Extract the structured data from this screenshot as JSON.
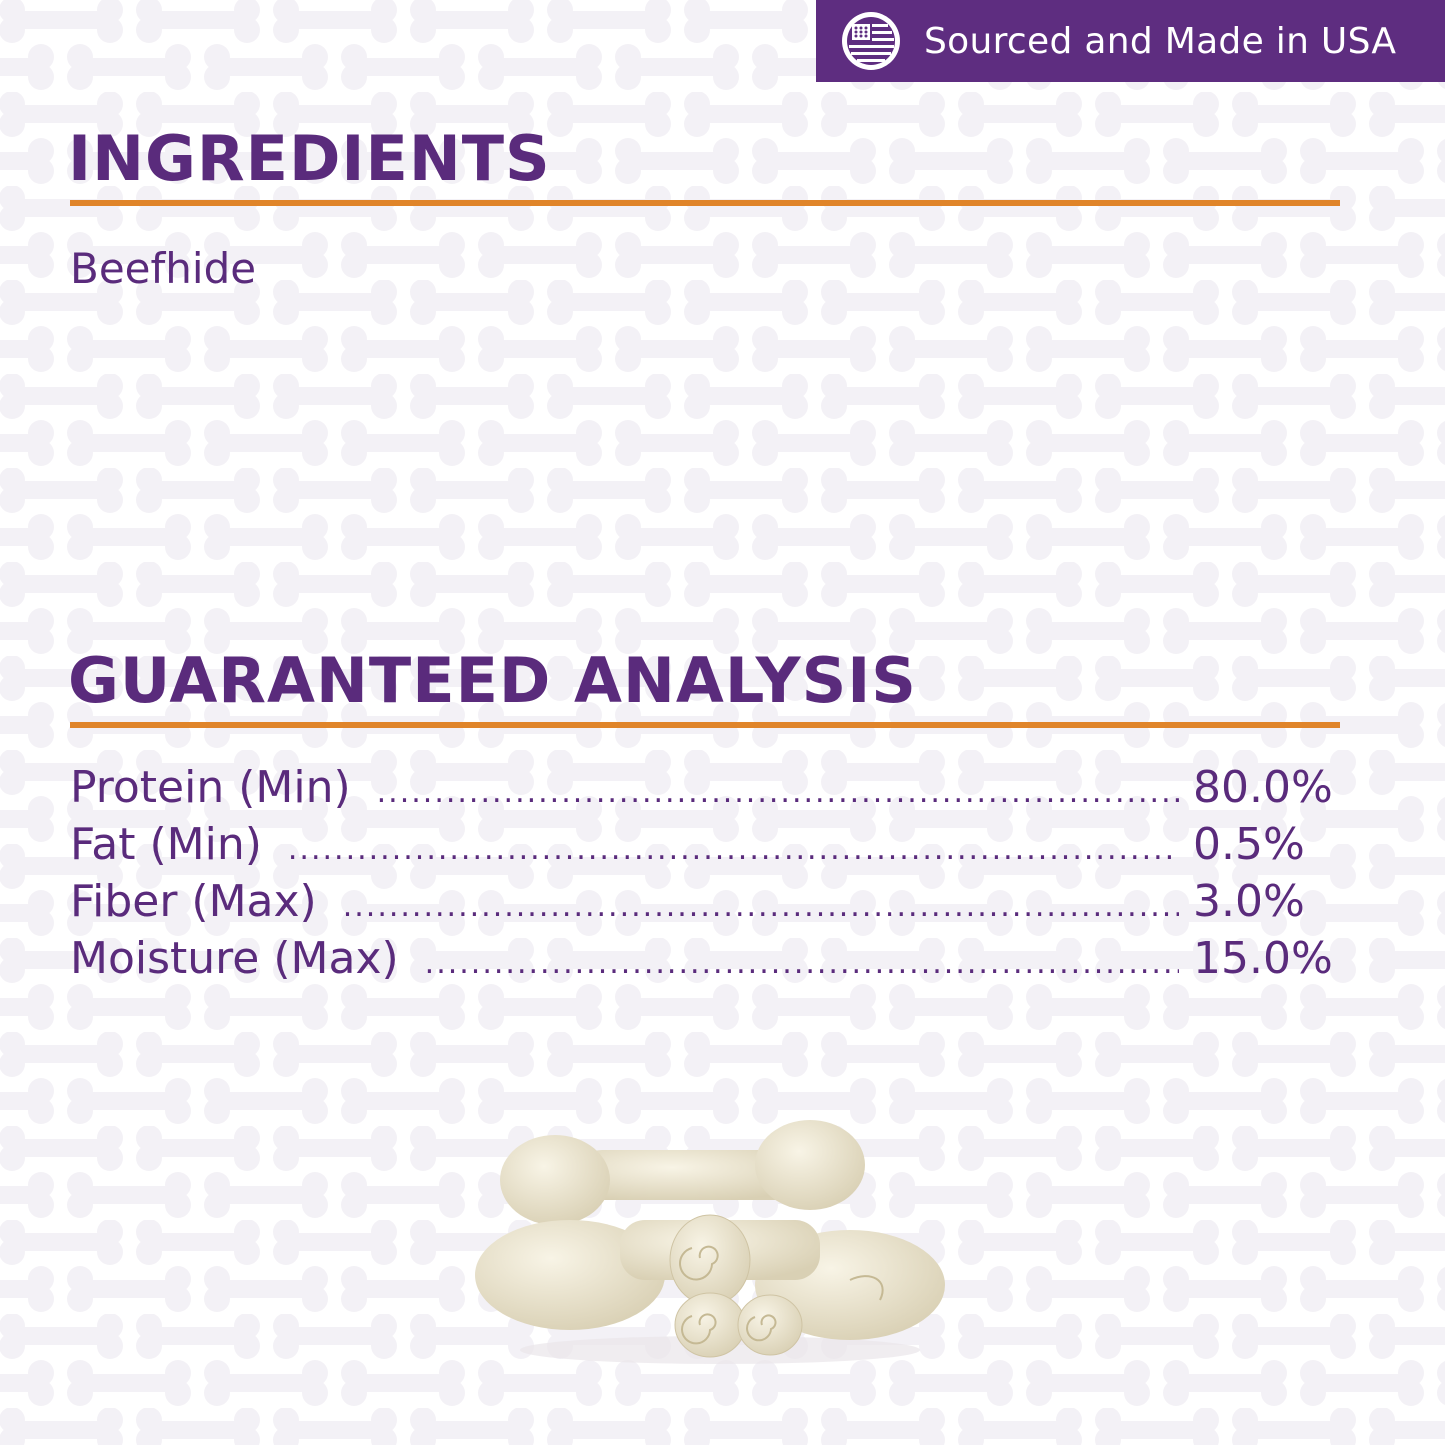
{
  "badge": {
    "icon": "usa-flag-globe-icon",
    "text": "Sourced and Made in USA"
  },
  "ingredients": {
    "title": "INGREDIENTS",
    "text": "Beefhide"
  },
  "analysis": {
    "title": "GUARANTEED ANALYSIS",
    "rows": [
      {
        "label": "Protein (Min)",
        "value": "80.0%"
      },
      {
        "label": "Fat (Min)",
        "value": "0.5%"
      },
      {
        "label": "Fiber (Max)",
        "value": "3.0%"
      },
      {
        "label": "Moisture (Max)",
        "value": "15.0%"
      }
    ]
  },
  "colors": {
    "purple": "#5a2b7c",
    "badge": "#5e2d80",
    "orange": "#e0852a",
    "bone_pattern": "#f3f1f6"
  }
}
